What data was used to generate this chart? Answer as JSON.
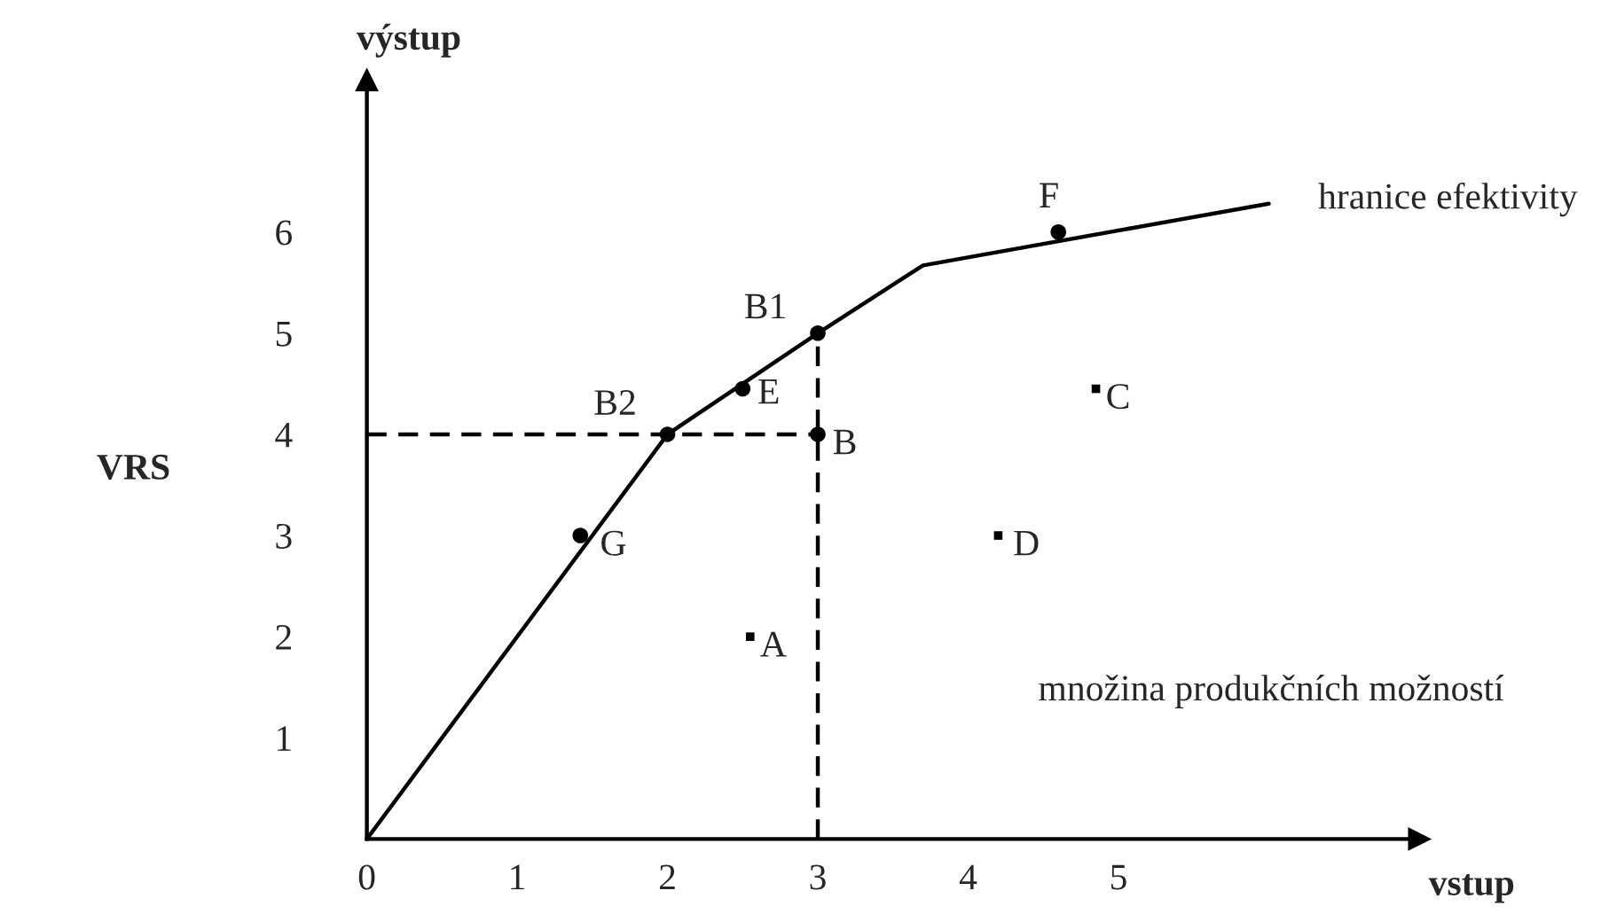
{
  "chart_data": {
    "type": "scatter",
    "xlabel": "vstup",
    "ylabel": "výstup",
    "xlim": [
      0,
      7
    ],
    "ylim": [
      0,
      7.5
    ],
    "xticks": [
      0,
      1,
      2,
      3,
      4,
      5
    ],
    "yticks": [
      1,
      2,
      3,
      4,
      5,
      6
    ],
    "grid": false,
    "series": [
      {
        "type": "line",
        "color": "#000000",
        "line_style": "solid",
        "marker": "none",
        "x": [
          0,
          2,
          3,
          3.7,
          6.0
        ],
        "values": [
          0,
          4,
          5,
          5.67,
          6.28
        ]
      },
      {
        "type": "line",
        "color": "#000000",
        "line_style": "dashed",
        "marker": "none",
        "x": [
          0,
          3
        ],
        "values": [
          4,
          4
        ]
      },
      {
        "type": "line",
        "color": "#000000",
        "line_style": "dashed",
        "marker": "none",
        "x": [
          3,
          3
        ],
        "values": [
          0,
          5
        ]
      },
      {
        "color": "#000000",
        "marker": "circle",
        "x": [
          1.42,
          2,
          2.5,
          3,
          3,
          4.6
        ],
        "values": [
          3,
          4,
          4.45,
          5,
          4,
          6
        ]
      },
      {
        "color": "#000000",
        "marker": "square",
        "x": [
          2.55,
          4.2,
          4.85
        ],
        "values": [
          2,
          3,
          4.45
        ]
      }
    ],
    "annotations": [
      {
        "text": "G",
        "x": 1.42,
        "y": 3
      },
      {
        "text": "B2",
        "x": 2,
        "y": 4
      },
      {
        "text": "E",
        "x": 2.5,
        "y": 4.45
      },
      {
        "text": "B1",
        "x": 3,
        "y": 5
      },
      {
        "text": "B",
        "x": 3,
        "y": 4
      },
      {
        "text": "F",
        "x": 4.6,
        "y": 6
      },
      {
        "text": "A",
        "x": 2.55,
        "y": 2
      },
      {
        "text": "D",
        "x": 4.2,
        "y": 3
      },
      {
        "text": "C",
        "x": 4.85,
        "y": 4.45
      },
      {
        "text": "hranice efektivity",
        "x": 6.0,
        "y": 6.28
      },
      "VRS",
      "množina produkčních možností"
    ]
  }
}
